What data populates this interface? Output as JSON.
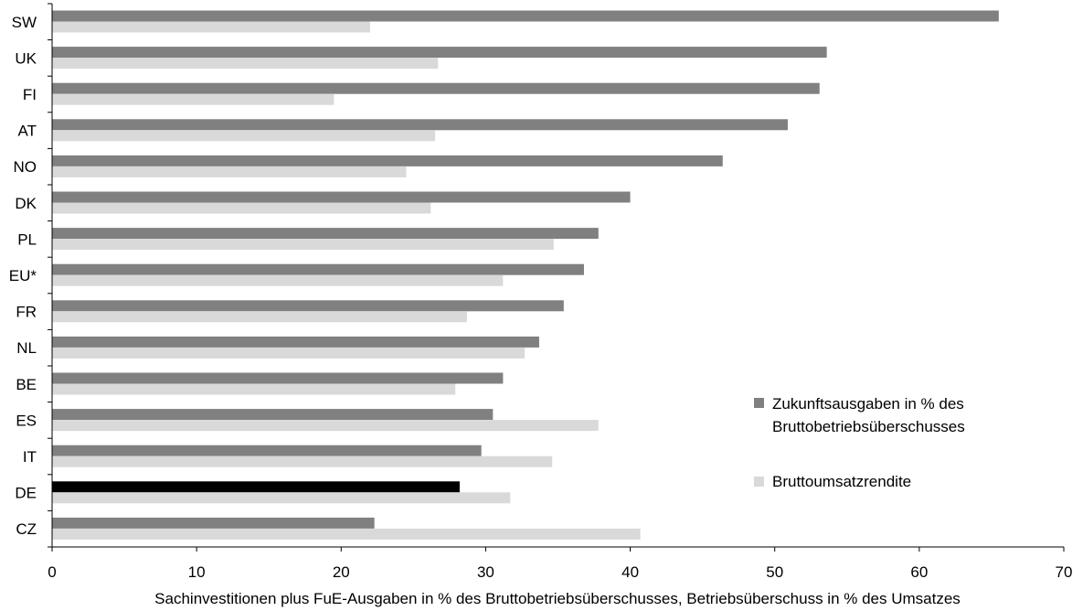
{
  "chart_data": {
    "type": "bar",
    "orientation": "horizontal",
    "categories": [
      "SW",
      "UK",
      "FI",
      "AT",
      "NO",
      "DK",
      "PL",
      "EU*",
      "FR",
      "NL",
      "BE",
      "ES",
      "IT",
      "DE",
      "CZ"
    ],
    "series": [
      {
        "name": "Zukunftsausgaben in % des Bruttobetriebsüberschusses",
        "values": [
          65.5,
          53.6,
          53.1,
          50.9,
          46.4,
          40.0,
          37.8,
          36.8,
          35.4,
          33.7,
          31.2,
          30.5,
          29.7,
          28.2,
          22.3
        ]
      },
      {
        "name": "Bruttoumsatzrendite",
        "values": [
          22.0,
          26.7,
          19.5,
          26.5,
          24.5,
          26.2,
          34.7,
          31.2,
          28.7,
          32.7,
          27.9,
          37.8,
          34.6,
          31.7,
          40.7
        ]
      }
    ],
    "xlabel": "Sachinvestitionen plus FuE-Ausgaben in % des Bruttobetriebsüberschusses, Betriebsüberschuss in % des Umsatzes",
    "xlim": [
      0,
      70
    ],
    "xticks": [
      0,
      10,
      20,
      30,
      40,
      50,
      60,
      70
    ],
    "grid": false,
    "legend_position": "right",
    "colors": {
      "series1": "#808080",
      "series2": "#d9d9d9",
      "highlight": "#000000"
    },
    "highlight_category": "DE"
  },
  "legend": {
    "item1_line1": "Zukunftsausgaben in % des",
    "item1_line2": "Bruttobetriebsüberschusses",
    "item2": "Bruttoumsatzrendite"
  }
}
